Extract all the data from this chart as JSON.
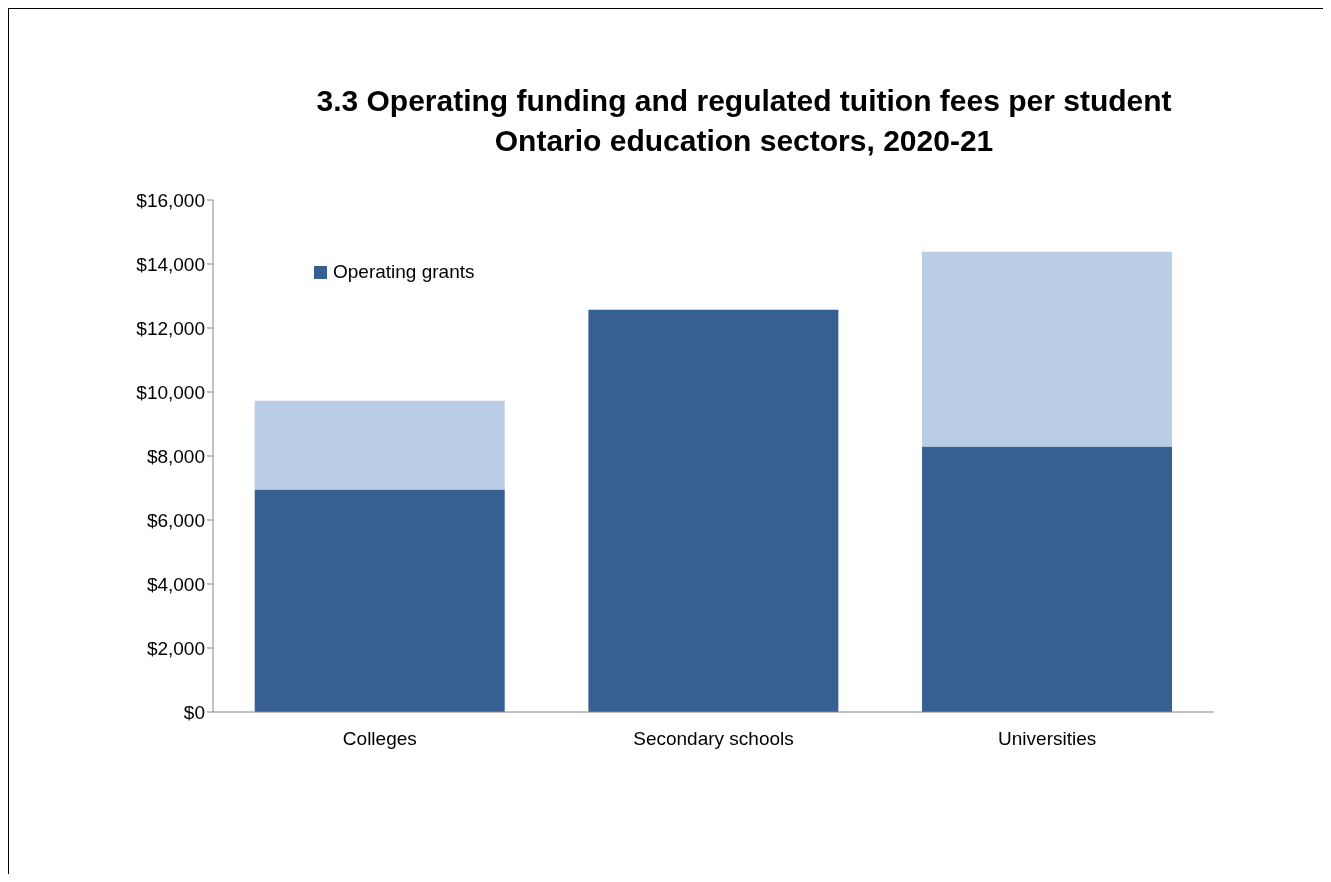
{
  "chart_data": {
    "type": "bar",
    "title": "3.3 Operating funding and regulated tuition fees per student",
    "subtitle": "Ontario education sectors, 2020-21",
    "categories": [
      "Colleges",
      "Secondary schools",
      "Universities"
    ],
    "stacked": true,
    "series": [
      {
        "name": "Operating grants",
        "color": "#376092",
        "values": [
          6950,
          12570,
          8300
        ]
      },
      {
        "color": "#b9cde5",
        "values": [
          2780,
          null,
          6080
        ]
      }
    ],
    "ylim": [
      0,
      16000
    ],
    "yticks": [
      {
        "value": 0,
        "label": "$0"
      },
      {
        "value": 2000,
        "label": "$2,000"
      },
      {
        "value": 4000,
        "label": "$4,000"
      },
      {
        "value": 6000,
        "label": "$6,000"
      },
      {
        "value": 8000,
        "label": "$8,000"
      },
      {
        "value": 10000,
        "label": "$10,000"
      },
      {
        "value": 12000,
        "label": "$12,000"
      },
      {
        "value": 14000,
        "label": "$14,000"
      },
      {
        "value": 16000,
        "label": "$16,000"
      }
    ],
    "grid": false,
    "legend": "top left"
  }
}
